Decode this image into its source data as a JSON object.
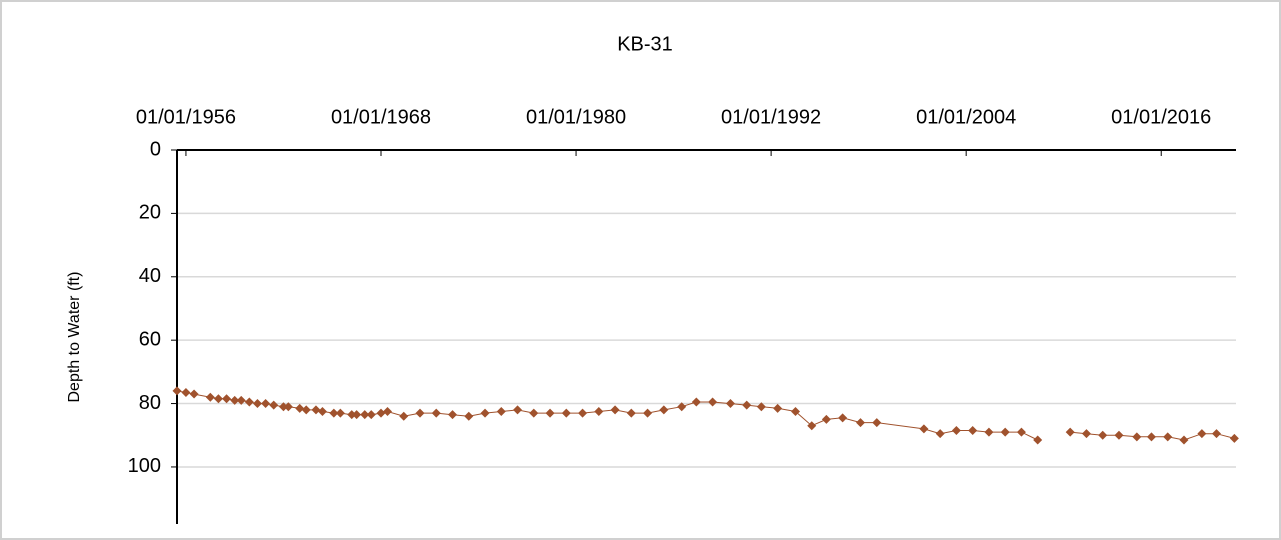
{
  "chart_data": {
    "type": "line",
    "title": "KB-31",
    "y_label": "Depth to Water (ft)",
    "x": [
      1955.45,
      1956.0,
      1956.5,
      1957.5,
      1958.0,
      1958.5,
      1959.0,
      1959.4,
      1959.9,
      1960.4,
      1960.9,
      1961.4,
      1962.0,
      1962.3,
      1963.0,
      1963.4,
      1964.0,
      1964.4,
      1965.1,
      1965.5,
      1966.2,
      1966.5,
      1967.0,
      1967.4,
      1968.0,
      1968.4,
      1969.4,
      1970.4,
      1971.4,
      1972.4,
      1973.4,
      1974.4,
      1975.4,
      1976.4,
      1977.4,
      1978.4,
      1979.4,
      1980.4,
      1981.4,
      1982.4,
      1983.4,
      1984.4,
      1985.4,
      1986.5,
      1987.4,
      1988.4,
      1989.5,
      1990.5,
      1991.4,
      1992.4,
      1993.5,
      1994.5,
      1995.4,
      1996.4,
      1997.5,
      1998.5,
      2001.4,
      2002.4,
      2003.4,
      2004.4,
      2005.4,
      2006.4,
      2007.4,
      2008.4,
      null,
      2010.4,
      2011.4,
      2012.4,
      2013.4,
      2014.5,
      2015.4,
      2016.4,
      2017.4,
      2018.5,
      2019.4,
      2020.5
    ],
    "values": [
      76,
      76.5,
      77,
      78,
      78.5,
      78.5,
      79,
      79,
      79.5,
      80,
      80,
      80.5,
      81,
      81,
      81.5,
      82,
      82,
      82.5,
      83,
      83,
      83.5,
      83.5,
      83.5,
      83.5,
      83,
      82.5,
      84,
      83,
      83,
      83.5,
      84,
      83,
      82.5,
      82,
      83,
      83,
      83,
      83,
      82.5,
      82,
      83,
      83,
      82,
      81,
      79.5,
      79.5,
      80,
      80.5,
      81,
      81.5,
      82.5,
      87,
      85,
      84.5,
      86,
      86,
      88,
      89.5,
      88.5,
      88.5,
      89,
      89,
      89,
      91.5,
      null,
      89,
      89.5,
      90,
      90,
      90.5,
      90.5,
      90.5,
      91.5,
      89.5,
      89.5,
      91
    ],
    "color": "#a0522d",
    "xlim": [
      1955.45,
      2020.6
    ],
    "xticks": [
      {
        "value": 1956,
        "label": "01/01/1956"
      },
      {
        "value": 1968,
        "label": "01/01/1968"
      },
      {
        "value": 1980,
        "label": "01/01/1980"
      },
      {
        "value": 1992,
        "label": "01/01/1992"
      },
      {
        "value": 2004,
        "label": "01/01/2004"
      },
      {
        "value": 2016,
        "label": "01/01/2016"
      }
    ],
    "ylim": [
      0,
      118
    ],
    "yticks": [
      0,
      20,
      40,
      60,
      80,
      100
    ],
    "y_inverted": true,
    "grid": true
  }
}
